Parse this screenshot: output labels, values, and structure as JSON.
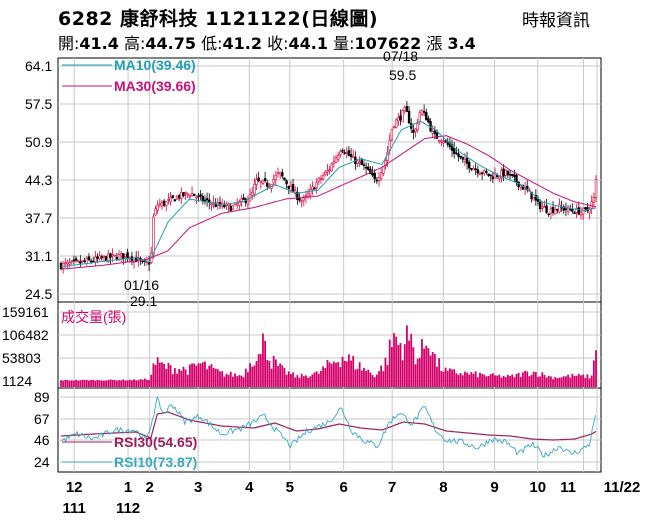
{
  "header": {
    "title_code": "6282",
    "title_name": "康舒科技",
    "title_date": "1121122(日線圖)",
    "source": "時報資訊",
    "quote": {
      "open_label": "開:",
      "open": "41.4",
      "high_label": "高:",
      "high": "44.75",
      "low_label": "低:",
      "low": "41.2",
      "close_label": "收:",
      "close": "44.1",
      "volume_label": "量:",
      "volume": "107622",
      "change_label": "漲",
      "change": "3.4"
    }
  },
  "colors": {
    "up": "#e0003c",
    "down": "#000000",
    "ma10": "#1f9fb4",
    "ma30": "#c8107a",
    "volume": "#d4006a",
    "rsi30": "#9b1f5f",
    "rsi10": "#38a7c4",
    "grid": "#c8c8c8"
  },
  "chart_data": [
    {
      "type": "candlestick",
      "panel": "price",
      "yticks": [
        "64.1",
        "57.5",
        "50.9",
        "44.3",
        "37.7",
        "31.1",
        "24.5"
      ],
      "ylim": [
        24.5,
        64.1
      ],
      "legend": [
        {
          "name": "MA10",
          "value": "(39.46)",
          "color": "ma10"
        },
        {
          "name": "MA30",
          "value": "(39.66)",
          "color": "ma30"
        }
      ],
      "annotations": [
        {
          "date": "07/18",
          "value": "59.5",
          "kind": "high"
        },
        {
          "date": "01/16",
          "value": "29.1",
          "kind": "low"
        }
      ],
      "approx_close_path": [
        [
          0,
          29.5
        ],
        [
          20,
          30.0
        ],
        [
          42,
          30.8
        ],
        [
          62,
          31.2
        ],
        [
          70,
          30.6
        ],
        [
          78,
          29.6
        ],
        [
          84,
          30.2
        ],
        [
          86,
          37.5
        ],
        [
          90,
          40.0
        ],
        [
          98,
          40.3
        ],
        [
          110,
          41.5
        ],
        [
          122,
          42.0
        ],
        [
          130,
          41.0
        ],
        [
          145,
          40.0
        ],
        [
          160,
          39.5
        ],
        [
          178,
          41.5
        ],
        [
          182,
          44.0
        ],
        [
          194,
          43.5
        ],
        [
          204,
          45.5
        ],
        [
          218,
          42.0
        ],
        [
          226,
          40.5
        ],
        [
          240,
          44.0
        ],
        [
          250,
          46.0
        ],
        [
          262,
          50.0
        ],
        [
          272,
          48.0
        ],
        [
          284,
          46.5
        ],
        [
          294,
          44.0
        ],
        [
          304,
          48.0
        ],
        [
          310,
          54.0
        ],
        [
          316,
          55.0
        ],
        [
          322,
          56.5
        ],
        [
          330,
          52.0
        ],
        [
          336,
          56.5
        ],
        [
          342,
          55.0
        ],
        [
          348,
          52.0
        ],
        [
          356,
          51.5
        ],
        [
          366,
          49.5
        ],
        [
          376,
          47.5
        ],
        [
          390,
          46.0
        ],
        [
          402,
          45.0
        ],
        [
          416,
          45.5
        ],
        [
          426,
          44.0
        ],
        [
          438,
          42.0
        ],
        [
          446,
          40.0
        ],
        [
          456,
          39.0
        ],
        [
          466,
          39.5
        ],
        [
          478,
          39.0
        ],
        [
          486,
          38.8
        ],
        [
          492,
          39.0
        ],
        [
          498,
          41.0
        ],
        [
          500,
          44.1
        ]
      ],
      "ma10_path": [
        [
          0,
          29.2
        ],
        [
          40,
          30.2
        ],
        [
          70,
          30.8
        ],
        [
          82,
          30.0
        ],
        [
          90,
          33.0
        ],
        [
          100,
          37.0
        ],
        [
          120,
          41.0
        ],
        [
          150,
          40.0
        ],
        [
          170,
          40.5
        ],
        [
          200,
          43.5
        ],
        [
          220,
          42.0
        ],
        [
          240,
          42.5
        ],
        [
          260,
          46.5
        ],
        [
          280,
          48.0
        ],
        [
          300,
          47.0
        ],
        [
          318,
          53.0
        ],
        [
          336,
          54.5
        ],
        [
          350,
          53.0
        ],
        [
          370,
          49.5
        ],
        [
          390,
          47.0
        ],
        [
          410,
          45.0
        ],
        [
          430,
          43.5
        ],
        [
          450,
          40.5
        ],
        [
          470,
          39.5
        ],
        [
          490,
          39.0
        ],
        [
          500,
          39.46
        ]
      ],
      "ma30_path": [
        [
          0,
          28.8
        ],
        [
          40,
          29.5
        ],
        [
          80,
          30.5
        ],
        [
          100,
          32.0
        ],
        [
          120,
          36.0
        ],
        [
          150,
          38.5
        ],
        [
          180,
          39.5
        ],
        [
          210,
          41.0
        ],
        [
          240,
          41.5
        ],
        [
          270,
          44.0
        ],
        [
          300,
          46.5
        ],
        [
          320,
          49.0
        ],
        [
          340,
          51.5
        ],
        [
          360,
          52.0
        ],
        [
          380,
          50.5
        ],
        [
          400,
          48.5
        ],
        [
          420,
          46.0
        ],
        [
          440,
          44.0
        ],
        [
          460,
          42.0
        ],
        [
          480,
          40.5
        ],
        [
          500,
          39.66
        ]
      ]
    },
    {
      "type": "bar",
      "panel": "volume",
      "label": "成交量(張)",
      "yticks": [
        "159161",
        "106482",
        "53803",
        "1124"
      ],
      "ylim": [
        1124,
        159161
      ],
      "approx_volume_path": [
        [
          0,
          3000
        ],
        [
          70,
          4000
        ],
        [
          84,
          6000
        ],
        [
          86,
          50000
        ],
        [
          100,
          35000
        ],
        [
          120,
          30000
        ],
        [
          130,
          45000
        ],
        [
          150,
          20000
        ],
        [
          170,
          15000
        ],
        [
          182,
          75000
        ],
        [
          188,
          55000
        ],
        [
          190,
          159161
        ],
        [
          194,
          60000
        ],
        [
          206,
          30000
        ],
        [
          220,
          12000
        ],
        [
          240,
          20000
        ],
        [
          262,
          65000
        ],
        [
          272,
          50000
        ],
        [
          294,
          15000
        ],
        [
          304,
          50000
        ],
        [
          312,
          120000
        ],
        [
          316,
          90000
        ],
        [
          326,
          110000
        ],
        [
          334,
          55000
        ],
        [
          344,
          118000
        ],
        [
          350,
          50000
        ],
        [
          360,
          25000
        ],
        [
          380,
          20000
        ],
        [
          400,
          15000
        ],
        [
          420,
          12000
        ],
        [
          440,
          25000
        ],
        [
          460,
          10000
        ],
        [
          480,
          15000
        ],
        [
          496,
          12000
        ],
        [
          500,
          107622
        ]
      ]
    },
    {
      "type": "line",
      "panel": "rsi",
      "yticks": [
        "89",
        "67",
        "46",
        "24"
      ],
      "ylim": [
        24,
        89
      ],
      "legend": [
        {
          "name": "RSI30",
          "value": "(54.65)",
          "color": "rsi30"
        },
        {
          "name": "RSI10",
          "value": "(73.87)",
          "color": "rsi10"
        }
      ],
      "rsi30_path": [
        [
          0,
          50
        ],
        [
          30,
          52
        ],
        [
          70,
          54
        ],
        [
          84,
          48
        ],
        [
          90,
          72
        ],
        [
          100,
          74
        ],
        [
          120,
          66
        ],
        [
          150,
          60
        ],
        [
          180,
          58
        ],
        [
          200,
          63
        ],
        [
          220,
          55
        ],
        [
          240,
          57
        ],
        [
          260,
          62
        ],
        [
          280,
          58
        ],
        [
          300,
          56
        ],
        [
          320,
          64
        ],
        [
          340,
          62
        ],
        [
          360,
          55
        ],
        [
          380,
          53
        ],
        [
          400,
          51
        ],
        [
          420,
          50
        ],
        [
          440,
          47
        ],
        [
          460,
          46
        ],
        [
          480,
          47
        ],
        [
          496,
          52
        ],
        [
          500,
          54.65
        ]
      ],
      "rsi10_path": [
        [
          0,
          45
        ],
        [
          15,
          52
        ],
        [
          30,
          47
        ],
        [
          50,
          56
        ],
        [
          70,
          56
        ],
        [
          80,
          45
        ],
        [
          90,
          86
        ],
        [
          96,
          72
        ],
        [
          104,
          82
        ],
        [
          116,
          64
        ],
        [
          130,
          70
        ],
        [
          150,
          52
        ],
        [
          170,
          58
        ],
        [
          190,
          70
        ],
        [
          200,
          57
        ],
        [
          215,
          40
        ],
        [
          230,
          55
        ],
        [
          250,
          64
        ],
        [
          262,
          78
        ],
        [
          272,
          55
        ],
        [
          284,
          45
        ],
        [
          296,
          40
        ],
        [
          306,
          62
        ],
        [
          316,
          74
        ],
        [
          328,
          62
        ],
        [
          340,
          79
        ],
        [
          350,
          56
        ],
        [
          360,
          46
        ],
        [
          375,
          44
        ],
        [
          390,
          38
        ],
        [
          402,
          47
        ],
        [
          416,
          44
        ],
        [
          428,
          32
        ],
        [
          440,
          42
        ],
        [
          452,
          30
        ],
        [
          466,
          40
        ],
        [
          476,
          32
        ],
        [
          486,
          36
        ],
        [
          494,
          42
        ],
        [
          500,
          73.87
        ]
      ]
    }
  ],
  "x_axis": {
    "months": [
      {
        "label": "12",
        "pos": 0.03
      },
      {
        "label": "1",
        "pos": 0.13
      },
      {
        "label": "2",
        "pos": 0.17
      },
      {
        "label": "3",
        "pos": 0.26
      },
      {
        "label": "4",
        "pos": 0.355
      },
      {
        "label": "5",
        "pos": 0.43
      },
      {
        "label": "6",
        "pos": 0.53
      },
      {
        "label": "7",
        "pos": 0.62
      },
      {
        "label": "8",
        "pos": 0.715
      },
      {
        "label": "9",
        "pos": 0.81
      },
      {
        "label": "10",
        "pos": 0.89
      },
      {
        "label": "11",
        "pos": 0.975
      },
      {
        "label": "11/22",
        "pos": 1.0
      }
    ],
    "years": [
      {
        "label": "111",
        "pos": 0.03
      },
      {
        "label": "112",
        "pos": 0.13
      }
    ]
  }
}
